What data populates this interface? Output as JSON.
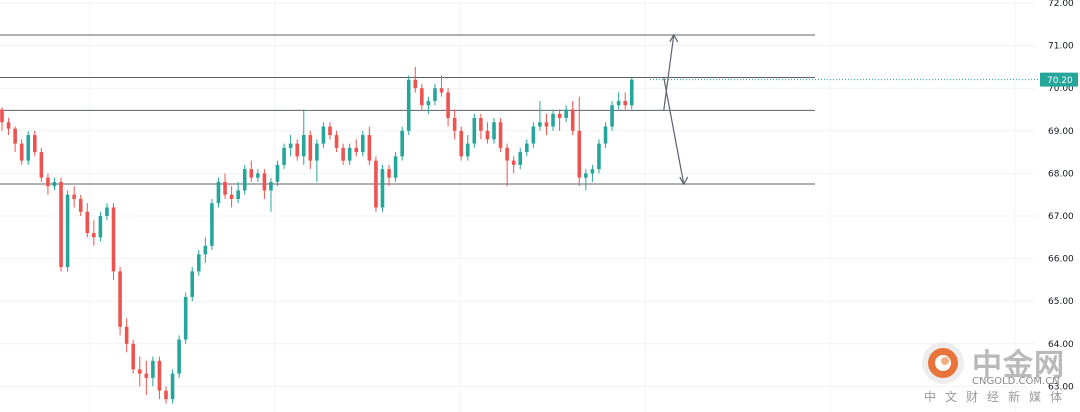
{
  "chart_data": {
    "type": "candlestick",
    "title": "",
    "xlabel": "",
    "ylabel": "",
    "ylim": [
      62.6,
      72.3
    ],
    "y_ticks": [
      "72.00",
      "71.00",
      "70.00",
      "69.00",
      "68.00",
      "67.00",
      "66.00",
      "65.00",
      "64.00",
      "63.00"
    ],
    "last_price": "70.20",
    "grid": true,
    "up_color": "#26a69a",
    "down_color": "#ef5350",
    "levels": [
      71.25,
      70.25,
      69.48,
      67.75
    ],
    "arrows": [
      {
        "from": 69.48,
        "to": 71.25,
        "direction": "up"
      },
      {
        "from": 70.25,
        "to": 67.75,
        "direction": "down"
      }
    ],
    "series": [
      {
        "values": [
          [
            69.5,
            69.55,
            69.0,
            69.2
          ],
          [
            69.2,
            69.3,
            68.9,
            69.05
          ],
          [
            69.05,
            69.1,
            68.5,
            68.7
          ],
          [
            68.7,
            68.8,
            68.2,
            68.3
          ],
          [
            68.3,
            69.0,
            68.2,
            68.9
          ],
          [
            68.9,
            69.0,
            68.4,
            68.5
          ],
          [
            68.5,
            68.6,
            67.8,
            67.9
          ],
          [
            67.9,
            68.0,
            67.5,
            67.7
          ],
          [
            67.7,
            67.9,
            67.6,
            67.8
          ],
          [
            67.8,
            67.9,
            65.7,
            65.8
          ],
          [
            65.8,
            67.6,
            65.7,
            67.5
          ],
          [
            67.5,
            67.7,
            67.2,
            67.4
          ],
          [
            67.4,
            67.5,
            67.0,
            67.1
          ],
          [
            67.1,
            67.3,
            66.5,
            66.6
          ],
          [
            66.6,
            66.9,
            66.3,
            66.5
          ],
          [
            66.5,
            67.1,
            66.4,
            67.0
          ],
          [
            67.0,
            67.3,
            66.9,
            67.2
          ],
          [
            67.2,
            67.3,
            65.5,
            65.7
          ],
          [
            65.7,
            65.8,
            64.2,
            64.4
          ],
          [
            64.4,
            64.6,
            63.8,
            64.0
          ],
          [
            64.0,
            64.1,
            63.3,
            63.4
          ],
          [
            63.4,
            63.7,
            63.0,
            63.3
          ],
          [
            63.3,
            63.6,
            62.8,
            63.2
          ],
          [
            63.2,
            63.7,
            63.0,
            63.6
          ],
          [
            63.6,
            63.7,
            62.7,
            62.9
          ],
          [
            62.9,
            63.0,
            62.6,
            62.7
          ],
          [
            62.7,
            63.4,
            62.6,
            63.3
          ],
          [
            63.3,
            64.2,
            63.2,
            64.1
          ],
          [
            64.1,
            65.2,
            64.0,
            65.1
          ],
          [
            65.1,
            65.8,
            65.0,
            65.7
          ],
          [
            65.7,
            66.2,
            65.6,
            66.1
          ],
          [
            66.1,
            66.5,
            65.9,
            66.3
          ],
          [
            66.3,
            67.4,
            66.2,
            67.3
          ],
          [
            67.3,
            67.9,
            67.2,
            67.8
          ],
          [
            67.8,
            68.0,
            67.4,
            67.5
          ],
          [
            67.5,
            67.7,
            67.2,
            67.4
          ],
          [
            67.4,
            67.8,
            67.3,
            67.6
          ],
          [
            67.6,
            68.2,
            67.5,
            68.1
          ],
          [
            68.1,
            68.3,
            67.8,
            67.9
          ],
          [
            67.9,
            68.1,
            67.8,
            68.0
          ],
          [
            68.0,
            68.1,
            67.4,
            67.6
          ],
          [
            67.6,
            67.9,
            67.1,
            67.8
          ],
          [
            67.8,
            68.3,
            67.7,
            68.2
          ],
          [
            68.2,
            68.7,
            68.1,
            68.6
          ],
          [
            68.6,
            68.9,
            68.4,
            68.7
          ],
          [
            68.7,
            68.8,
            68.3,
            68.4
          ],
          [
            68.4,
            69.5,
            68.2,
            68.9
          ],
          [
            68.9,
            69.0,
            68.1,
            68.3
          ],
          [
            68.3,
            68.8,
            67.8,
            68.7
          ],
          [
            68.7,
            69.2,
            68.6,
            69.1
          ],
          [
            69.1,
            69.2,
            68.8,
            68.9
          ],
          [
            68.9,
            69.0,
            68.5,
            68.6
          ],
          [
            68.6,
            68.7,
            68.2,
            68.3
          ],
          [
            68.3,
            68.7,
            68.2,
            68.6
          ],
          [
            68.6,
            68.8,
            68.4,
            68.5
          ],
          [
            68.5,
            69.0,
            68.4,
            68.9
          ],
          [
            68.9,
            69.1,
            68.2,
            68.3
          ],
          [
            68.3,
            68.4,
            67.1,
            67.2
          ],
          [
            67.2,
            68.2,
            67.1,
            68.1
          ],
          [
            68.1,
            68.2,
            67.7,
            67.9
          ],
          [
            67.9,
            68.5,
            67.8,
            68.4
          ],
          [
            68.4,
            69.1,
            68.3,
            69.0
          ],
          [
            69.0,
            70.3,
            68.9,
            70.2
          ],
          [
            70.2,
            70.5,
            69.9,
            70.0
          ],
          [
            70.0,
            70.1,
            69.5,
            69.6
          ],
          [
            69.6,
            69.8,
            69.4,
            69.7
          ],
          [
            69.7,
            70.1,
            69.6,
            70.0
          ],
          [
            70.0,
            70.3,
            69.8,
            69.9
          ],
          [
            69.9,
            70.0,
            69.1,
            69.3
          ],
          [
            69.3,
            69.5,
            68.8,
            69.0
          ],
          [
            69.0,
            69.1,
            68.3,
            68.4
          ],
          [
            68.4,
            68.9,
            68.3,
            68.7
          ],
          [
            68.7,
            69.4,
            68.6,
            69.3
          ],
          [
            69.3,
            69.4,
            68.8,
            69.0
          ],
          [
            69.0,
            69.2,
            68.7,
            68.8
          ],
          [
            68.8,
            69.3,
            68.7,
            69.2
          ],
          [
            69.2,
            69.3,
            68.5,
            68.6
          ],
          [
            68.6,
            68.7,
            67.7,
            68.3
          ],
          [
            68.3,
            68.4,
            68.0,
            68.2
          ],
          [
            68.2,
            68.6,
            68.1,
            68.5
          ],
          [
            68.5,
            68.8,
            68.4,
            68.7
          ],
          [
            68.7,
            69.2,
            68.6,
            69.1
          ],
          [
            69.1,
            69.7,
            69.0,
            69.2
          ],
          [
            69.2,
            69.4,
            68.9,
            69.1
          ],
          [
            69.1,
            69.5,
            69.0,
            69.4
          ],
          [
            69.4,
            69.5,
            69.0,
            69.3
          ],
          [
            69.3,
            69.6,
            69.2,
            69.5
          ],
          [
            69.5,
            69.7,
            68.9,
            69.0
          ],
          [
            69.0,
            69.8,
            67.7,
            67.9
          ],
          [
            67.9,
            68.1,
            67.6,
            68.0
          ],
          [
            68.0,
            68.2,
            67.8,
            68.1
          ],
          [
            68.1,
            68.8,
            68.0,
            68.7
          ],
          [
            68.7,
            69.2,
            68.6,
            69.1
          ],
          [
            69.1,
            69.7,
            69.0,
            69.6
          ],
          [
            69.6,
            69.9,
            69.5,
            69.7
          ],
          [
            69.7,
            69.9,
            69.5,
            69.6
          ],
          [
            69.6,
            70.25,
            69.5,
            70.2
          ]
        ]
      }
    ]
  },
  "watermark": {
    "name_cn": "中金网",
    "domain": "CNGOLD.COM.CN",
    "subtitle": "中文财经新媒体",
    "logo_color": "#e8743b"
  }
}
